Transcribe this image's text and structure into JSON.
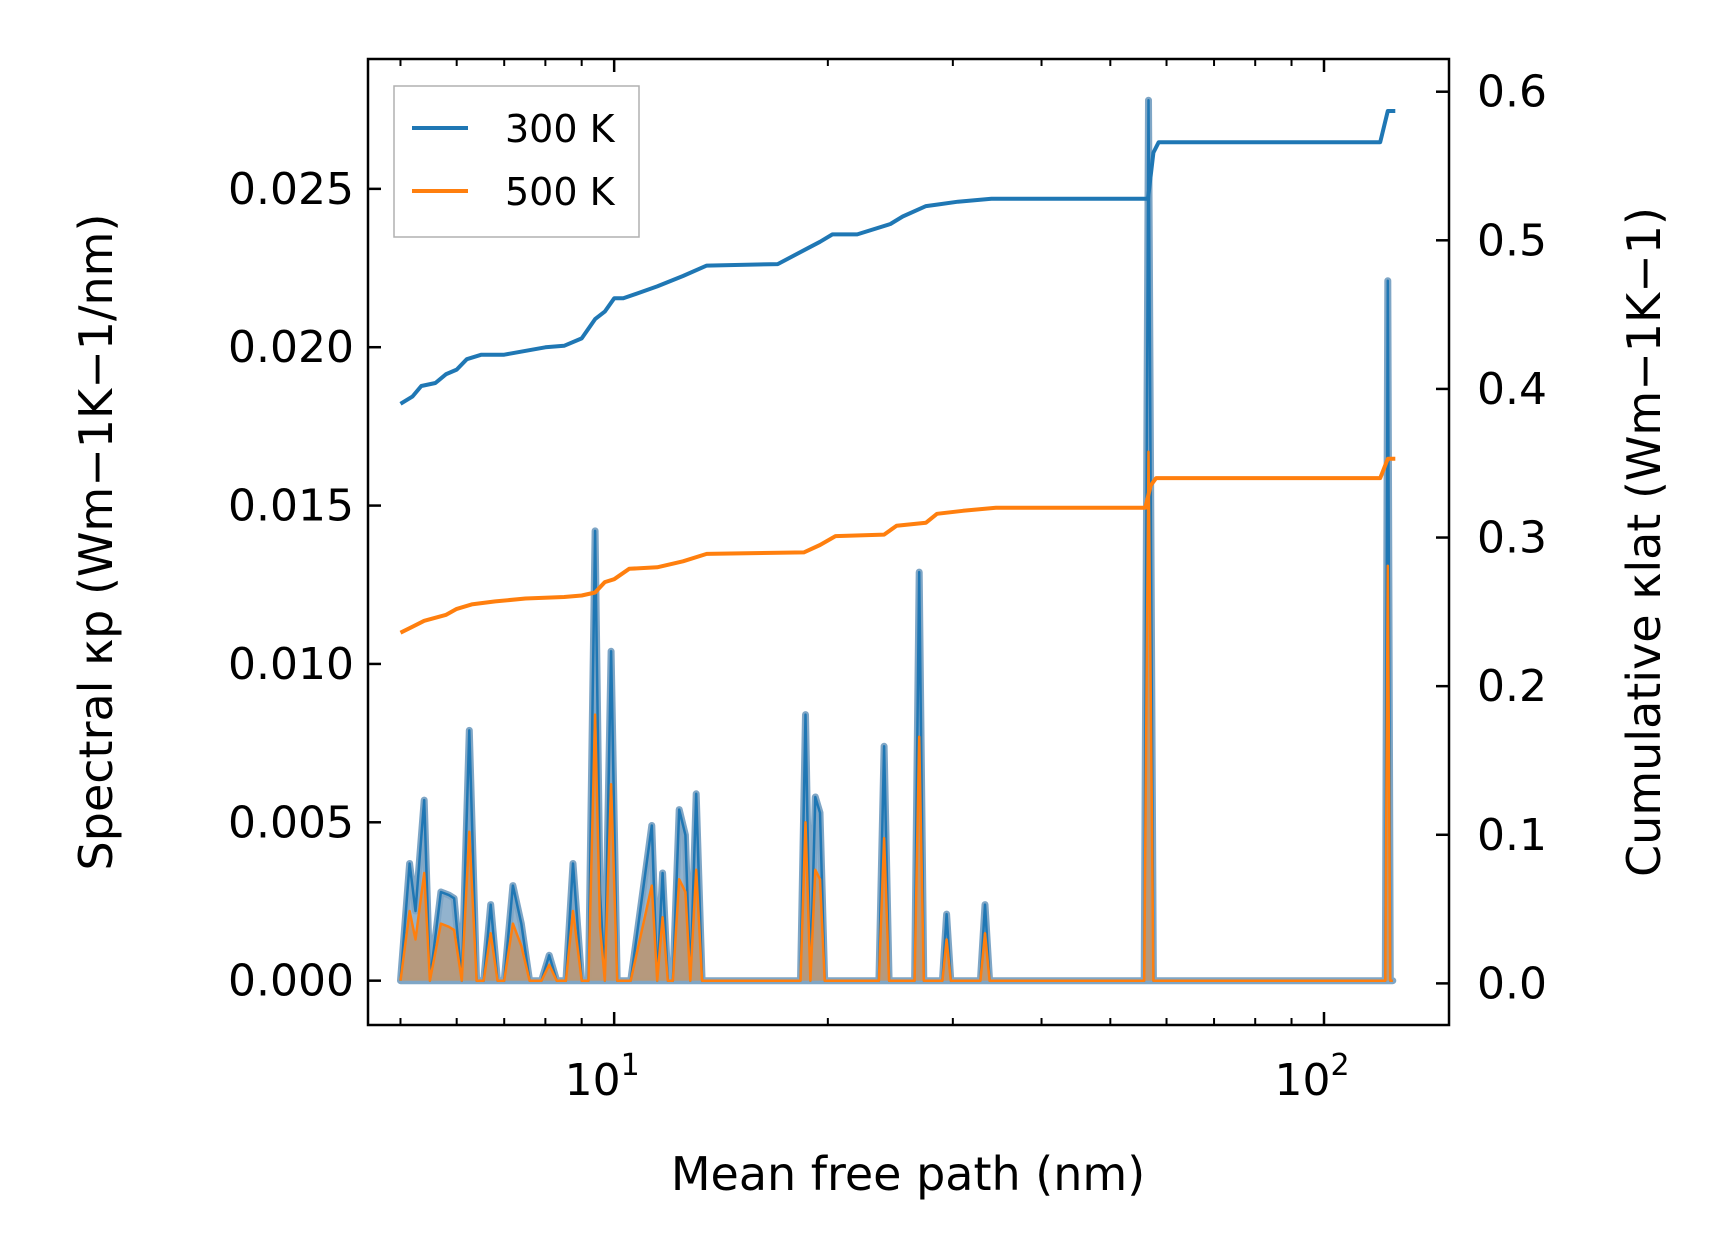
{
  "chart_data": {
    "type": "line",
    "xscale": "log",
    "xlabel": "Mean free path (nm)",
    "ylabel_left": "Spectral κp (Wm−1K−1/nm)",
    "ylabel_right": "Cumulative κlat (Wm−1K−1)",
    "xlim": [
      4.5,
      150
    ],
    "ylim_left": [
      -0.0014,
      0.0291
    ],
    "ylim_right": [
      -0.028,
      0.622
    ],
    "xticks": [
      10,
      100
    ],
    "xtick_labels": [
      "10^1",
      "10^2"
    ],
    "yticks_left": [
      0.0,
      0.005,
      0.01,
      0.015,
      0.02,
      0.025
    ],
    "ytick_labels_left": [
      "0.000",
      "0.005",
      "0.010",
      "0.015",
      "0.020",
      "0.025"
    ],
    "yticks_right": [
      0.0,
      0.1,
      0.2,
      0.3,
      0.4,
      0.5,
      0.6
    ],
    "ytick_labels_right": [
      "0.0",
      "0.1",
      "0.2",
      "0.3",
      "0.4",
      "0.5",
      "0.6"
    ],
    "legend": {
      "location": "upper-left",
      "entries": [
        "300 K",
        "500 K"
      ]
    },
    "colors": {
      "300 K": "#1f77b4",
      "500 K": "#ff7f0e",
      "spectral_outline": "#7fa6c6",
      "overlap_fill": "#b89878"
    },
    "cumulative": [
      {
        "name": "300 K",
        "x": [
          5.0,
          5.2,
          5.35,
          5.6,
          5.8,
          6.0,
          6.2,
          6.5,
          7.0,
          8.0,
          8.5,
          9.0,
          9.4,
          9.7,
          10.0,
          10.3,
          11.5,
          12.5,
          13.5,
          17.0,
          18.8,
          19.5,
          20.3,
          22.0,
          24.5,
          25.5,
          27.5,
          28.5,
          30.5,
          34.0,
          56.5,
          57.5,
          58.5,
          120.0,
          123.0,
          126.0
        ],
        "y": [
          0.39,
          0.395,
          0.402,
          0.404,
          0.41,
          0.413,
          0.42,
          0.423,
          0.423,
          0.428,
          0.429,
          0.434,
          0.447,
          0.452,
          0.461,
          0.461,
          0.469,
          0.476,
          0.483,
          0.484,
          0.495,
          0.499,
          0.504,
          0.504,
          0.511,
          0.516,
          0.523,
          0.524,
          0.526,
          0.528,
          0.528,
          0.559,
          0.566,
          0.566,
          0.587,
          0.587
        ]
      },
      {
        "name": "500 K",
        "x": [
          5.0,
          5.2,
          5.4,
          5.8,
          6.0,
          6.3,
          6.8,
          7.5,
          8.5,
          9.0,
          9.4,
          9.7,
          10.0,
          10.5,
          11.5,
          12.5,
          13.5,
          18.5,
          19.5,
          20.5,
          24.0,
          25.0,
          27.5,
          28.5,
          31.0,
          34.5,
          56.0,
          57.0,
          58.0,
          120.0,
          123.0,
          126.0
        ],
        "y": [
          0.236,
          0.24,
          0.244,
          0.248,
          0.252,
          0.255,
          0.257,
          0.259,
          0.26,
          0.261,
          0.263,
          0.27,
          0.272,
          0.279,
          0.28,
          0.284,
          0.289,
          0.29,
          0.295,
          0.301,
          0.302,
          0.308,
          0.31,
          0.316,
          0.318,
          0.32,
          0.32,
          0.335,
          0.34,
          0.34,
          0.353,
          0.353
        ]
      }
    ],
    "spectral": [
      {
        "name": "300 K",
        "x": [
          5.0,
          5.15,
          5.25,
          5.4,
          5.5,
          5.7,
          5.85,
          5.95,
          6.1,
          6.25,
          6.4,
          6.55,
          6.7,
          6.85,
          7.0,
          7.2,
          7.4,
          7.6,
          7.9,
          8.1,
          8.3,
          8.55,
          8.75,
          9.0,
          9.2,
          9.4,
          9.55,
          9.7,
          9.9,
          10.1,
          10.3,
          10.55,
          11.3,
          11.5,
          11.7,
          11.9,
          12.1,
          12.35,
          12.6,
          12.8,
          13.05,
          13.3,
          13.5,
          13.8,
          18.3,
          18.6,
          18.9,
          19.2,
          19.5,
          19.8,
          20.1,
          20.4,
          23.6,
          24.0,
          24.4,
          24.8,
          26.5,
          26.9,
          27.3,
          27.7,
          29.0,
          29.4,
          29.8,
          32.8,
          33.3,
          33.8,
          55.0,
          55.8,
          56.6,
          57.5,
          58.5,
          120.0,
          122.0,
          123.0,
          124.0,
          125.0
        ],
        "y": [
          0.0,
          0.0037,
          0.0022,
          0.0057,
          0.0,
          0.0028,
          0.0027,
          0.0026,
          0.0,
          0.0079,
          0.0,
          0.0,
          0.0024,
          0.0,
          0.0,
          0.003,
          0.0018,
          0.0,
          0.0,
          0.0008,
          0.0,
          0.0,
          0.0037,
          0.0,
          0.0,
          0.0142,
          0.0028,
          0.0,
          0.0104,
          0.0,
          0.0,
          0.0,
          0.0049,
          0.0,
          0.0034,
          0.0,
          0.0,
          0.0054,
          0.0046,
          0.0,
          0.0059,
          0.0,
          0.0,
          0.0,
          0.0,
          0.0084,
          0.0,
          0.0058,
          0.0053,
          0.0,
          0.0,
          0.0,
          0.0,
          0.0074,
          0.0,
          0.0,
          0.0,
          0.0129,
          0.0,
          0.0,
          0.0,
          0.0021,
          0.0,
          0.0,
          0.0024,
          0.0,
          0.0,
          0.0,
          0.0278,
          0.0,
          0.0,
          0.0,
          0.0,
          0.0221,
          0.0,
          0.0
        ]
      },
      {
        "name": "500 K",
        "x": [
          5.0,
          5.15,
          5.25,
          5.4,
          5.5,
          5.7,
          5.85,
          5.95,
          6.1,
          6.25,
          6.4,
          6.55,
          6.7,
          6.85,
          7.0,
          7.2,
          7.4,
          7.6,
          7.9,
          8.1,
          8.3,
          8.55,
          8.75,
          9.0,
          9.2,
          9.4,
          9.55,
          9.7,
          9.9,
          10.1,
          10.3,
          10.55,
          11.3,
          11.5,
          11.7,
          11.9,
          12.1,
          12.35,
          12.6,
          12.8,
          13.05,
          13.3,
          13.5,
          13.8,
          18.3,
          18.6,
          18.9,
          19.2,
          19.5,
          19.8,
          20.1,
          20.4,
          23.6,
          24.0,
          24.4,
          24.8,
          26.5,
          26.9,
          27.3,
          27.7,
          29.0,
          29.4,
          29.8,
          32.8,
          33.3,
          33.8,
          55.0,
          55.8,
          56.6,
          57.5,
          58.5,
          120.0,
          122.0,
          123.0,
          124.0,
          125.0
        ],
        "y": [
          0.0,
          0.0022,
          0.0013,
          0.0034,
          0.0,
          0.0018,
          0.0017,
          0.0016,
          0.0,
          0.0047,
          0.0,
          0.0,
          0.0015,
          0.0,
          0.0,
          0.0018,
          0.0011,
          0.0,
          0.0,
          0.0005,
          0.0,
          0.0,
          0.0022,
          0.0,
          0.0,
          0.0084,
          0.0017,
          0.0,
          0.0062,
          0.0,
          0.0,
          0.0,
          0.003,
          0.0,
          0.002,
          0.0,
          0.0,
          0.0032,
          0.0028,
          0.0,
          0.0035,
          0.0,
          0.0,
          0.0,
          0.0,
          0.005,
          0.0,
          0.0035,
          0.0032,
          0.0,
          0.0,
          0.0,
          0.0,
          0.0045,
          0.0,
          0.0,
          0.0,
          0.0077,
          0.0,
          0.0,
          0.0,
          0.0013,
          0.0,
          0.0,
          0.0015,
          0.0,
          0.0,
          0.0,
          0.0167,
          0.0,
          0.0,
          0.0,
          0.0,
          0.0131,
          0.0,
          0.0
        ]
      }
    ]
  }
}
